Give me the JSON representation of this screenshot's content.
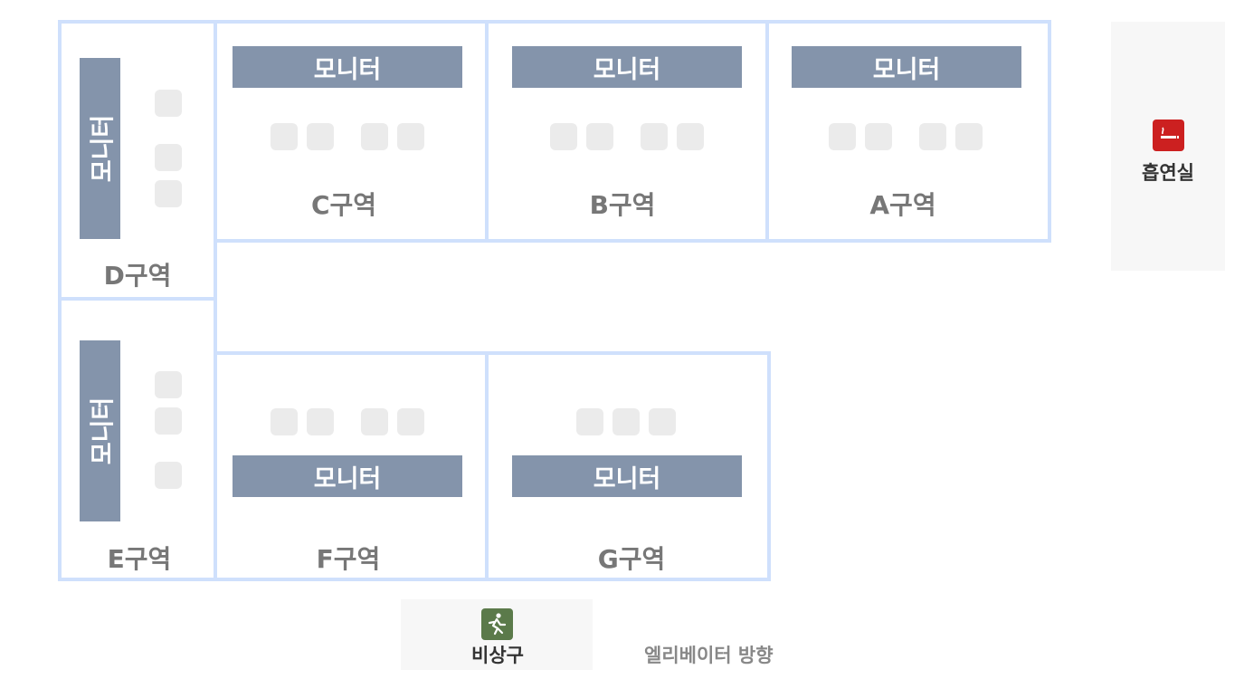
{
  "zones": {
    "a": {
      "label": "A구역",
      "monitor": "모니터"
    },
    "b": {
      "label": "B구역",
      "monitor": "모니터"
    },
    "c": {
      "label": "C구역",
      "monitor": "모니터"
    },
    "d": {
      "label": "D구역",
      "monitor": "모니터"
    },
    "e": {
      "label": "E구역",
      "monitor": "모니터"
    },
    "f": {
      "label": "F구역",
      "monitor": "모니터"
    },
    "g": {
      "label": "G구역",
      "monitor": "모니터"
    }
  },
  "facilities": {
    "smoking": {
      "label": "흡연실",
      "icon": "smoking-icon",
      "color": "#cc2020"
    },
    "exit": {
      "label": "비상구",
      "icon": "emergency-exit-icon",
      "color": "#5b7a4a"
    }
  },
  "elevator": {
    "label": "엘리베이터 방향"
  },
  "colors": {
    "wall": "#cfe0fc",
    "monitor": "#8494ab",
    "seat": "#ebebeb",
    "label": "#777777"
  }
}
